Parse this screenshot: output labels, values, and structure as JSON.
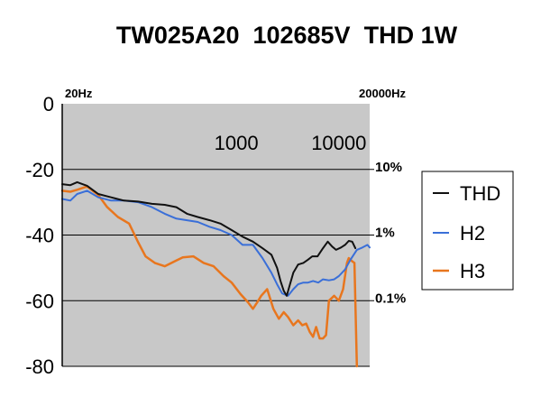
{
  "chart_data": {
    "type": "line",
    "title": "TW025A20  102685V  THD 1W",
    "x_scale": "log",
    "xlim": [
      20,
      20000
    ],
    "ylim": [
      -80,
      0
    ],
    "y_ticks": [
      "0",
      "-20",
      "-40",
      "-60",
      "-80"
    ],
    "y_tick_values": [
      0,
      -20,
      -40,
      -60,
      -80
    ],
    "x_edge_labels": [
      "20Hz",
      "20000Hz"
    ],
    "x_ticks": [
      "1000",
      "10000"
    ],
    "x_tick_values": [
      1000,
      10000
    ],
    "right_labels": [
      {
        "label": "10%",
        "value": -20
      },
      {
        "label": "1%",
        "value": -40
      },
      {
        "label": "0.1%",
        "value": -60
      }
    ],
    "grid": "horizontal",
    "legend_position": "right",
    "colors": {
      "background": "#c8c8c8",
      "THD": "#111111",
      "H2": "#3a6fd8",
      "H3": "#e8761e"
    },
    "series": [
      {
        "name": "THD",
        "x": [
          20,
          24,
          28,
          35,
          45,
          60,
          80,
          110,
          150,
          200,
          260,
          330,
          420,
          550,
          700,
          900,
          1150,
          1450,
          1800,
          2200,
          2500,
          2700,
          2900,
          3100,
          3300,
          3600,
          4000,
          4500,
          5000,
          5500,
          6200,
          7000,
          7800,
          8600,
          9400,
          10500,
          11500,
          12500,
          13500,
          14500
        ],
        "values": [
          -24.5,
          -24.8,
          -23.9,
          -25,
          -27.5,
          -28.5,
          -29.5,
          -29.8,
          -30.5,
          -30.8,
          -31.5,
          -33.5,
          -34.5,
          -35.5,
          -36.5,
          -38.5,
          -40.5,
          -42,
          -44,
          -46,
          -50,
          -54,
          -57,
          -58.5,
          -55.5,
          -51.5,
          -49,
          -48.5,
          -47.5,
          -46.5,
          -46.5,
          -44,
          -42,
          -43.5,
          -44.5,
          -43.8,
          -43,
          -41.8,
          -42,
          -44
        ]
      },
      {
        "name": "H2",
        "x": [
          20,
          24,
          28,
          35,
          45,
          60,
          80,
          110,
          150,
          200,
          260,
          330,
          420,
          550,
          700,
          900,
          1150,
          1450,
          1800,
          2200,
          2500,
          2800,
          3200,
          3600,
          4000,
          4500,
          5000,
          5600,
          6300,
          7000,
          8000,
          9000,
          10000,
          11500,
          13000,
          15000,
          17000,
          19000,
          20000
        ],
        "values": [
          -29,
          -29.5,
          -27.5,
          -26.5,
          -28.5,
          -29.5,
          -29.5,
          -30,
          -31.5,
          -33.5,
          -35,
          -35.5,
          -36,
          -37.5,
          -38.5,
          -40,
          -43,
          -43,
          -47,
          -51.5,
          -55,
          -57.8,
          -58.5,
          -56.5,
          -55,
          -54.5,
          -54.5,
          -54,
          -54.5,
          -53.5,
          -53.8,
          -53.5,
          -52.5,
          -50.5,
          -47.5,
          -44.5,
          -43.8,
          -43,
          -43.8
        ]
      },
      {
        "name": "H3",
        "x": [
          20,
          24,
          28,
          35,
          45,
          55,
          70,
          90,
          110,
          130,
          160,
          200,
          250,
          300,
          380,
          480,
          600,
          750,
          900,
          1100,
          1300,
          1450,
          1600,
          1750,
          2000,
          2300,
          2600,
          2900,
          3200,
          3600,
          4000,
          4400,
          4800,
          5200,
          5600,
          6000,
          6500,
          7000,
          7500,
          8000,
          9000,
          10000,
          11000,
          12000,
          12500,
          13500,
          14200,
          15000
        ],
        "values": [
          -26.5,
          -26.8,
          -26.2,
          -25.2,
          -27.8,
          -31.5,
          -34.5,
          -36.5,
          -42.2,
          -46.5,
          -48.5,
          -49.5,
          -48,
          -46.8,
          -46.5,
          -48.5,
          -49.5,
          -52.5,
          -54.5,
          -58,
          -60.5,
          -62.5,
          -60.5,
          -58.5,
          -56.5,
          -62.5,
          -65.5,
          -63.5,
          -65,
          -67.5,
          -66,
          -67.5,
          -67,
          -69.5,
          -71,
          -68,
          -71.5,
          -71.5,
          -70.5,
          -60,
          -58.5,
          -60,
          -56.5,
          -48.5,
          -47,
          -48,
          -48.5,
          -80
        ]
      }
    ]
  }
}
